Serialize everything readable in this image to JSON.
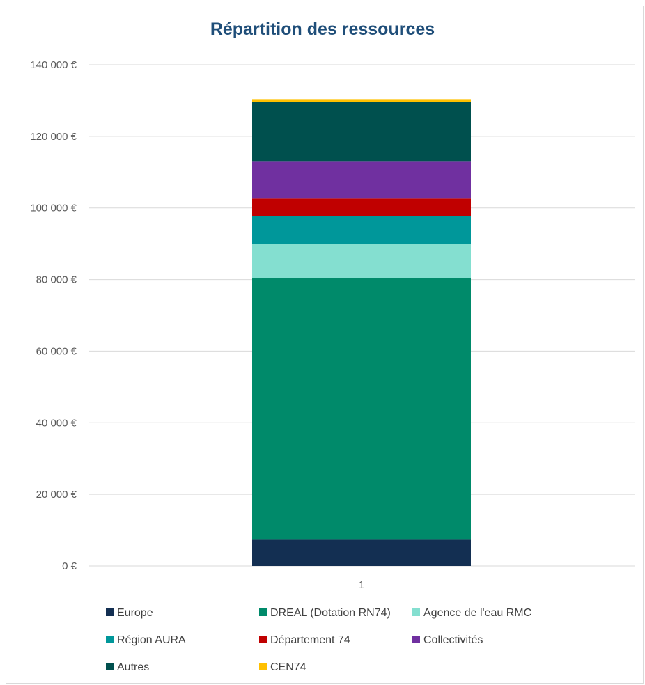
{
  "chart_data": {
    "type": "bar",
    "stacked": true,
    "title": "Répartition des ressources",
    "categories": [
      "1"
    ],
    "ylim": [
      0,
      140000
    ],
    "yticks": [
      0,
      20000,
      40000,
      60000,
      80000,
      100000,
      120000,
      140000
    ],
    "ytick_labels": [
      "0 €",
      "20 000 €",
      "40 000 €",
      "60 000 €",
      "80 000 €",
      "100 000 €",
      "120 000 €",
      "140 000 €"
    ],
    "grid": true,
    "legend_position": "bottom",
    "series": [
      {
        "name": "Europe",
        "values": [
          7500
        ],
        "color": "#132f52"
      },
      {
        "name": "DREAL (Dotation RN74)",
        "values": [
          73000
        ],
        "color": "#008a6a"
      },
      {
        "name": "Agence de l'eau RMC",
        "values": [
          9500
        ],
        "color": "#84dfd0"
      },
      {
        "name": "Région AURA",
        "values": [
          7800
        ],
        "color": "#00979a"
      },
      {
        "name": "Département 74",
        "values": [
          4800
        ],
        "color": "#c00000"
      },
      {
        "name": "Collectivités",
        "values": [
          10500
        ],
        "color": "#7030a0"
      },
      {
        "name": "Autres",
        "values": [
          16500
        ],
        "color": "#00504e"
      },
      {
        "name": "CEN74",
        "values": [
          800
        ],
        "color": "#ffc000"
      }
    ]
  }
}
